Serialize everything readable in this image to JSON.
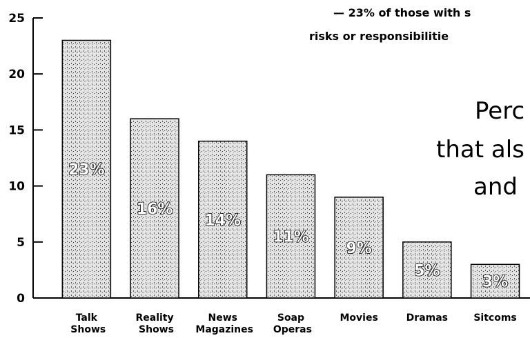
{
  "chart_data": {
    "type": "bar",
    "categories": [
      "Talk Shows",
      "Reality Shows",
      "News Magazines",
      "Soap Operas",
      "Movies",
      "Dramas",
      "Sitcoms"
    ],
    "values": [
      23,
      16,
      14,
      11,
      9,
      5,
      3
    ],
    "value_labels": [
      "23%",
      "16%",
      "14%",
      "11%",
      "9%",
      "5%",
      "3%"
    ],
    "color": "#cfcfcf",
    "ylim": [
      0,
      25
    ],
    "yticks": [
      0,
      5,
      10,
      15,
      20,
      25
    ],
    "annotations": [
      "— 23% of those with s",
      "risks or responsibilitie",
      "Perc",
      "that als",
      "and"
    ]
  }
}
